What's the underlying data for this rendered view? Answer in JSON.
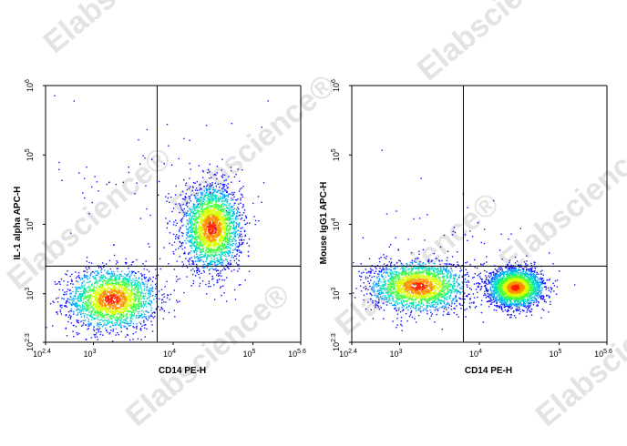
{
  "watermark": "Elabscience®",
  "chart_data": [
    {
      "type": "scatter",
      "subtype": "flow-cytometry-density-dot-plot",
      "xlabel": "CD14 PE-H",
      "ylabel": "IL-1 alpha APC-H",
      "x_scale": "log",
      "y_scale": "log",
      "xlim": [
        251,
        398107
      ],
      "ylim": [
        200,
        1000000
      ],
      "x_ticks": [
        {
          "base": "10",
          "exp": "2.4"
        },
        {
          "base": "10",
          "exp": "3"
        },
        {
          "base": "10",
          "exp": "4"
        },
        {
          "base": "10",
          "exp": "5"
        },
        {
          "base": "10",
          "exp": "5.6"
        }
      ],
      "y_ticks": [
        {
          "base": "10",
          "exp": "2.3"
        },
        {
          "base": "10",
          "exp": "3"
        },
        {
          "base": "10",
          "exp": "4"
        },
        {
          "base": "10",
          "exp": "5"
        },
        {
          "base": "10",
          "exp": "6"
        }
      ],
      "gate_x": 6300,
      "gate_y": 2500,
      "populations": [
        {
          "name_hidden": "CD14- monocyte-negative",
          "center_x": 1700,
          "center_y": 850,
          "spread_x_decades": 0.28,
          "spread_y_decades": 0.22,
          "count": 2200
        },
        {
          "name_hidden": "CD14+ IL-1a+",
          "center_x": 30000,
          "center_y": 9000,
          "spread_x_decades": 0.18,
          "spread_y_decades": 0.3,
          "count": 2600
        },
        {
          "name_hidden": "sparse scatter",
          "center_x": 6000,
          "center_y": 50000,
          "spread_x_decades": 0.7,
          "spread_y_decades": 0.5,
          "count": 80
        }
      ],
      "grid": false,
      "legend": "none"
    },
    {
      "type": "scatter",
      "subtype": "flow-cytometry-density-dot-plot",
      "xlabel": "CD14 PE-H",
      "ylabel": "Mouse IgG1 APC-H",
      "x_scale": "log",
      "y_scale": "log",
      "xlim": [
        251,
        398107
      ],
      "ylim": [
        200,
        1000000
      ],
      "x_ticks": [
        {
          "base": "10",
          "exp": "2.4"
        },
        {
          "base": "10",
          "exp": "3"
        },
        {
          "base": "10",
          "exp": "4"
        },
        {
          "base": "10",
          "exp": "5"
        },
        {
          "base": "10",
          "exp": "5.6"
        }
      ],
      "y_ticks": [
        {
          "base": "10",
          "exp": "2.3"
        },
        {
          "base": "10",
          "exp": "3"
        },
        {
          "base": "10",
          "exp": "4"
        },
        {
          "base": "10",
          "exp": "5"
        },
        {
          "base": "10",
          "exp": "6"
        }
      ],
      "gate_x": 6300,
      "gate_y": 2500,
      "populations": [
        {
          "name_hidden": "CD14- isotype",
          "center_x": 1700,
          "center_y": 1300,
          "spread_x_decades": 0.3,
          "spread_y_decades": 0.18,
          "count": 2200
        },
        {
          "name_hidden": "CD14+ isotype",
          "center_x": 28000,
          "center_y": 1250,
          "spread_x_decades": 0.17,
          "spread_y_decades": 0.14,
          "count": 2600
        },
        {
          "name_hidden": "sparse scatter",
          "center_x": 5000,
          "center_y": 8000,
          "spread_x_decades": 0.6,
          "spread_y_decades": 0.4,
          "count": 40
        }
      ],
      "grid": false,
      "legend": "none"
    }
  ],
  "colormap": [
    "#1010ff",
    "#00a0ff",
    "#00e0c0",
    "#40ff40",
    "#d8ff00",
    "#ff9000",
    "#ff2000"
  ]
}
